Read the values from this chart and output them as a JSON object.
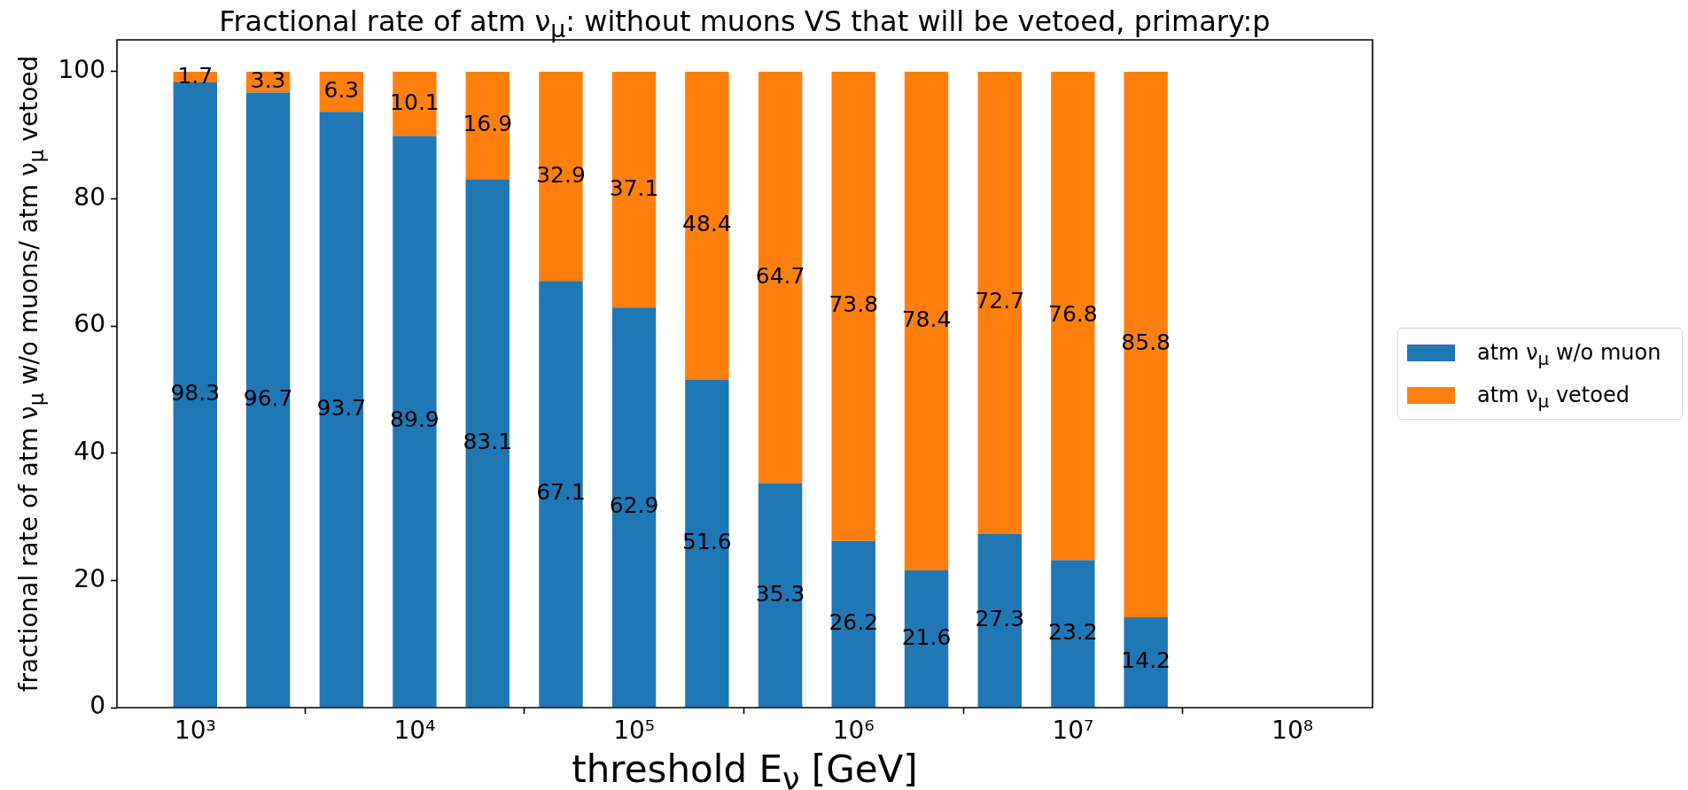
{
  "chart_data": {
    "type": "bar",
    "title": "Fractional rate of atm ν$_{μ}$: without muons VS that will be vetoed, primary:p",
    "xlabel": "threshold E$_{ν}$ [GeV]",
    "ylabel": "fractional rate of atm ν$_{μ}$ w/o muons/ atm ν$_{μ}$ vetoed",
    "x": [
      1000,
      2150,
      4640,
      10000,
      21500,
      46400,
      100000,
      215000,
      464000,
      1000000,
      2150000,
      4640000,
      10000000,
      21500000
    ],
    "series": [
      {
        "name": "atm ν$_{μ}$ w/o muon",
        "color": "#1f77b4",
        "values": [
          98.3,
          96.7,
          93.7,
          89.9,
          83.1,
          67.1,
          62.9,
          51.6,
          35.3,
          26.2,
          21.6,
          27.3,
          23.2,
          14.2
        ]
      },
      {
        "name": "atm ν$_{μ}$ vetoed",
        "color": "#ff7f0e",
        "values": [
          1.7,
          3.3,
          6.3,
          10.1,
          16.9,
          32.9,
          37.1,
          48.4,
          64.7,
          73.8,
          78.4,
          72.7,
          76.8,
          85.8
        ]
      }
    ],
    "stacked": true,
    "data_labels": true,
    "log": "x",
    "legend": "right",
    "xlim": [
      440,
      232000000
    ],
    "xticks": [
      {
        "value": 1000,
        "label": "10³"
      },
      {
        "value": 10000,
        "label": "10⁴"
      },
      {
        "value": 100000,
        "label": "10⁵"
      },
      {
        "value": 1000000,
        "label": "10⁶"
      },
      {
        "value": 10000000,
        "label": "10⁷"
      },
      {
        "value": 100000000,
        "label": "10⁸"
      }
    ],
    "ylim": [
      0,
      105
    ],
    "yticks": [
      0,
      20,
      40,
      60,
      80,
      100
    ]
  }
}
